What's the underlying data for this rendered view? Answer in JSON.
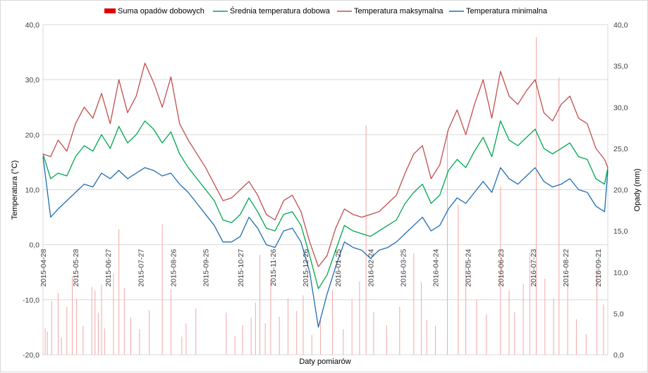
{
  "chart_data": {
    "type": "line",
    "title": "",
    "xlabel": "Daty pomiarów",
    "ylabel": "Temperatura (°C)",
    "y2label": "Opady (mm)",
    "ylim": [
      -20,
      40
    ],
    "y2lim": [
      0,
      40
    ],
    "yticks": [
      "-20,0",
      "-10,0",
      "0,0",
      "10,0",
      "20,0",
      "30,0",
      "40,0"
    ],
    "y2ticks": [
      "0,0",
      "5,0",
      "10,0",
      "15,0",
      "20,0",
      "25,0",
      "30,0",
      "35,0",
      "40,0"
    ],
    "x_start": "2015-04-28",
    "x_end": "2016-09-30",
    "x_ticks": [
      "2015-04-28",
      "2015-05-28",
      "2015-06-27",
      "2015-07-27",
      "2015-08-26",
      "2015-09-25",
      "2015-10-27",
      "2015-11-26",
      "2015-12-26",
      "2016-01-25",
      "2016-02-24",
      "2016-03-25",
      "2016-04-24",
      "2016-05-24",
      "2016-06-23",
      "2016-07-23",
      "2016-08-22",
      "2016-09-21"
    ],
    "legend_position": "top",
    "grid": "horizontal",
    "series": [
      {
        "name": "Suma opadów dobowych",
        "type": "bar",
        "axis": "right",
        "color": "#f4a6a6",
        "points": [
          [
            "2015-04-30",
            3.2
          ],
          [
            "2015-05-02",
            2.8
          ],
          [
            "2015-05-06",
            6.5
          ],
          [
            "2015-05-12",
            7.5
          ],
          [
            "2015-05-15",
            2.1
          ],
          [
            "2015-05-20",
            5.8
          ],
          [
            "2015-05-25",
            9.5
          ],
          [
            "2015-05-29",
            6.8
          ],
          [
            "2015-06-04",
            3.5
          ],
          [
            "2015-06-12",
            8.2
          ],
          [
            "2015-06-15",
            7.8
          ],
          [
            "2015-06-18",
            5.1
          ],
          [
            "2015-06-21",
            8.5
          ],
          [
            "2015-06-24",
            3.2
          ],
          [
            "2015-07-02",
            9.8
          ],
          [
            "2015-07-07",
            15.2
          ],
          [
            "2015-07-12",
            8.1
          ],
          [
            "2015-07-18",
            4.5
          ],
          [
            "2015-07-26",
            3.1
          ],
          [
            "2015-08-04",
            5.4
          ],
          [
            "2015-08-16",
            15.8
          ],
          [
            "2015-08-24",
            7.9
          ],
          [
            "2015-09-03",
            2.2
          ],
          [
            "2015-09-07",
            3.8
          ],
          [
            "2015-09-16",
            5.6
          ],
          [
            "2015-10-14",
            5.1
          ],
          [
            "2015-10-22",
            2.3
          ],
          [
            "2015-10-29",
            3.6
          ],
          [
            "2015-11-06",
            4.5
          ],
          [
            "2015-11-10",
            6.3
          ],
          [
            "2015-11-14",
            12.1
          ],
          [
            "2015-11-19",
            3.8
          ],
          [
            "2015-11-24",
            9.1
          ],
          [
            "2015-12-02",
            4.6
          ],
          [
            "2015-12-10",
            6.8
          ],
          [
            "2015-12-18",
            5.3
          ],
          [
            "2015-12-24",
            7.2
          ],
          [
            "2016-01-01",
            2.4
          ],
          [
            "2016-01-09",
            4.5
          ],
          [
            "2016-01-20",
            7.8
          ],
          [
            "2016-01-30",
            3.1
          ],
          [
            "2016-02-07",
            6.7
          ],
          [
            "2016-02-14",
            8.9
          ],
          [
            "2016-02-20",
            27.8
          ],
          [
            "2016-02-27",
            5.2
          ],
          [
            "2016-03-10",
            3.6
          ],
          [
            "2016-03-22",
            5.8
          ],
          [
            "2016-04-04",
            12.3
          ],
          [
            "2016-04-11",
            8.8
          ],
          [
            "2016-04-16",
            4.2
          ],
          [
            "2016-04-24",
            3.5
          ],
          [
            "2016-05-05",
            27.1
          ],
          [
            "2016-05-15",
            18.2
          ],
          [
            "2016-05-22",
            11.2
          ],
          [
            "2016-06-01",
            6.7
          ],
          [
            "2016-06-10",
            4.9
          ],
          [
            "2016-06-23",
            20.4
          ],
          [
            "2016-07-01",
            7.8
          ],
          [
            "2016-07-06",
            5.2
          ],
          [
            "2016-07-14",
            8.6
          ],
          [
            "2016-07-20",
            12.4
          ],
          [
            "2016-07-26",
            38.5
          ],
          [
            "2016-08-03",
            9.2
          ],
          [
            "2016-08-11",
            6.8
          ],
          [
            "2016-08-16",
            33.6
          ],
          [
            "2016-08-24",
            8.8
          ],
          [
            "2016-09-01",
            4.3
          ],
          [
            "2016-09-10",
            2.5
          ],
          [
            "2016-09-20",
            10.6
          ],
          [
            "2016-09-26",
            6.1
          ]
        ]
      },
      {
        "name": "Średnia temperatura dobowa",
        "type": "line",
        "axis": "left",
        "color": "#00a650",
        "points": [
          [
            "2015-04-28",
            16.5
          ],
          [
            "2015-05-05",
            12.0
          ],
          [
            "2015-05-12",
            13.0
          ],
          [
            "2015-05-20",
            12.5
          ],
          [
            "2015-05-28",
            16.0
          ],
          [
            "2015-06-05",
            18.0
          ],
          [
            "2015-06-13",
            17.0
          ],
          [
            "2015-06-21",
            20.0
          ],
          [
            "2015-06-29",
            17.5
          ],
          [
            "2015-07-07",
            21.5
          ],
          [
            "2015-07-15",
            18.5
          ],
          [
            "2015-07-23",
            20.0
          ],
          [
            "2015-07-31",
            22.5
          ],
          [
            "2015-08-08",
            21.0
          ],
          [
            "2015-08-16",
            18.5
          ],
          [
            "2015-08-24",
            20.5
          ],
          [
            "2015-09-01",
            16.5
          ],
          [
            "2015-09-09",
            14.0
          ],
          [
            "2015-09-17",
            12.0
          ],
          [
            "2015-09-25",
            10.0
          ],
          [
            "2015-10-03",
            8.0
          ],
          [
            "2015-10-11",
            4.5
          ],
          [
            "2015-10-19",
            4.0
          ],
          [
            "2015-10-27",
            5.5
          ],
          [
            "2015-11-04",
            8.5
          ],
          [
            "2015-11-12",
            6.0
          ],
          [
            "2015-11-20",
            3.0
          ],
          [
            "2015-11-28",
            2.5
          ],
          [
            "2015-12-06",
            5.5
          ],
          [
            "2015-12-14",
            6.0
          ],
          [
            "2015-12-22",
            3.5
          ],
          [
            "2015-12-30",
            -2.0
          ],
          [
            "2016-01-07",
            -8.0
          ],
          [
            "2016-01-15",
            -5.5
          ],
          [
            "2016-01-23",
            -1.0
          ],
          [
            "2016-01-31",
            3.5
          ],
          [
            "2016-02-08",
            2.5
          ],
          [
            "2016-02-16",
            2.0
          ],
          [
            "2016-02-24",
            1.5
          ],
          [
            "2016-03-03",
            2.5
          ],
          [
            "2016-03-11",
            3.5
          ],
          [
            "2016-03-19",
            4.5
          ],
          [
            "2016-03-27",
            7.5
          ],
          [
            "2016-04-04",
            9.5
          ],
          [
            "2016-04-12",
            11.0
          ],
          [
            "2016-04-20",
            7.5
          ],
          [
            "2016-04-28",
            9.0
          ],
          [
            "2016-05-06",
            13.5
          ],
          [
            "2016-05-14",
            15.5
          ],
          [
            "2016-05-22",
            14.0
          ],
          [
            "2016-05-30",
            17.0
          ],
          [
            "2016-06-07",
            19.5
          ],
          [
            "2016-06-15",
            16.0
          ],
          [
            "2016-06-23",
            22.5
          ],
          [
            "2016-07-01",
            19.0
          ],
          [
            "2016-07-09",
            18.0
          ],
          [
            "2016-07-17",
            19.5
          ],
          [
            "2016-07-25",
            21.0
          ],
          [
            "2016-08-02",
            17.5
          ],
          [
            "2016-08-10",
            16.5
          ],
          [
            "2016-08-18",
            17.5
          ],
          [
            "2016-08-26",
            18.5
          ],
          [
            "2016-09-03",
            16.0
          ],
          [
            "2016-09-11",
            15.5
          ],
          [
            "2016-09-19",
            12.0
          ],
          [
            "2016-09-27",
            11.0
          ],
          [
            "2016-09-30",
            14.0
          ]
        ]
      },
      {
        "name": "Temperatura maksymalna",
        "type": "line",
        "axis": "left",
        "color": "#c0504d",
        "points": [
          [
            "2015-04-28",
            16.5
          ],
          [
            "2015-05-05",
            16.0
          ],
          [
            "2015-05-12",
            19.0
          ],
          [
            "2015-05-20",
            17.0
          ],
          [
            "2015-05-28",
            22.0
          ],
          [
            "2015-06-05",
            25.0
          ],
          [
            "2015-06-13",
            23.0
          ],
          [
            "2015-06-21",
            27.5
          ],
          [
            "2015-06-29",
            22.0
          ],
          [
            "2015-07-07",
            30.0
          ],
          [
            "2015-07-15",
            24.0
          ],
          [
            "2015-07-23",
            27.0
          ],
          [
            "2015-07-31",
            33.0
          ],
          [
            "2015-08-08",
            29.5
          ],
          [
            "2015-08-16",
            25.0
          ],
          [
            "2015-08-24",
            30.5
          ],
          [
            "2015-09-01",
            22.0
          ],
          [
            "2015-09-09",
            19.0
          ],
          [
            "2015-09-17",
            16.5
          ],
          [
            "2015-09-25",
            14.0
          ],
          [
            "2015-10-03",
            11.0
          ],
          [
            "2015-10-11",
            8.0
          ],
          [
            "2015-10-19",
            8.5
          ],
          [
            "2015-10-27",
            10.0
          ],
          [
            "2015-11-04",
            11.5
          ],
          [
            "2015-11-12",
            9.0
          ],
          [
            "2015-11-20",
            5.5
          ],
          [
            "2015-11-28",
            4.5
          ],
          [
            "2015-12-06",
            8.0
          ],
          [
            "2015-12-14",
            9.0
          ],
          [
            "2015-12-22",
            6.0
          ],
          [
            "2015-12-30",
            0.5
          ],
          [
            "2016-01-07",
            -4.0
          ],
          [
            "2016-01-15",
            -2.0
          ],
          [
            "2016-01-23",
            3.0
          ],
          [
            "2016-01-31",
            6.5
          ],
          [
            "2016-02-08",
            5.5
          ],
          [
            "2016-02-16",
            5.0
          ],
          [
            "2016-02-24",
            5.5
          ],
          [
            "2016-03-03",
            6.0
          ],
          [
            "2016-03-11",
            7.5
          ],
          [
            "2016-03-19",
            9.0
          ],
          [
            "2016-03-27",
            13.0
          ],
          [
            "2016-04-04",
            16.5
          ],
          [
            "2016-04-12",
            18.0
          ],
          [
            "2016-04-20",
            12.0
          ],
          [
            "2016-04-28",
            14.5
          ],
          [
            "2016-05-06",
            21.0
          ],
          [
            "2016-05-14",
            24.5
          ],
          [
            "2016-05-22",
            20.0
          ],
          [
            "2016-05-30",
            25.5
          ],
          [
            "2016-06-07",
            30.0
          ],
          [
            "2016-06-15",
            23.0
          ],
          [
            "2016-06-23",
            31.5
          ],
          [
            "2016-07-01",
            27.0
          ],
          [
            "2016-07-09",
            25.5
          ],
          [
            "2016-07-17",
            28.0
          ],
          [
            "2016-07-25",
            30.0
          ],
          [
            "2016-08-02",
            24.0
          ],
          [
            "2016-08-10",
            22.5
          ],
          [
            "2016-08-18",
            25.5
          ],
          [
            "2016-08-26",
            27.0
          ],
          [
            "2016-09-03",
            23.0
          ],
          [
            "2016-09-11",
            22.0
          ],
          [
            "2016-09-19",
            17.5
          ],
          [
            "2016-09-27",
            15.5
          ],
          [
            "2016-09-30",
            14.0
          ]
        ]
      },
      {
        "name": "Temperatura minimalna",
        "type": "line",
        "axis": "left",
        "color": "#1f6db5",
        "points": [
          [
            "2015-04-28",
            16.0
          ],
          [
            "2015-05-05",
            5.0
          ],
          [
            "2015-05-12",
            6.5
          ],
          [
            "2015-05-20",
            8.0
          ],
          [
            "2015-05-28",
            9.5
          ],
          [
            "2015-06-05",
            11.0
          ],
          [
            "2015-06-13",
            10.5
          ],
          [
            "2015-06-21",
            13.0
          ],
          [
            "2015-06-29",
            12.0
          ],
          [
            "2015-07-07",
            13.5
          ],
          [
            "2015-07-15",
            12.0
          ],
          [
            "2015-07-23",
            13.0
          ],
          [
            "2015-07-31",
            14.0
          ],
          [
            "2015-08-08",
            13.5
          ],
          [
            "2015-08-16",
            12.5
          ],
          [
            "2015-08-24",
            13.0
          ],
          [
            "2015-09-01",
            11.0
          ],
          [
            "2015-09-09",
            9.5
          ],
          [
            "2015-09-17",
            7.5
          ],
          [
            "2015-09-25",
            5.5
          ],
          [
            "2015-10-03",
            3.5
          ],
          [
            "2015-10-11",
            0.5
          ],
          [
            "2015-10-19",
            0.5
          ],
          [
            "2015-10-27",
            1.5
          ],
          [
            "2015-11-04",
            5.0
          ],
          [
            "2015-11-12",
            3.0
          ],
          [
            "2015-11-20",
            0.0
          ],
          [
            "2015-11-28",
            -0.5
          ],
          [
            "2015-12-06",
            2.5
          ],
          [
            "2015-12-14",
            3.0
          ],
          [
            "2015-12-22",
            0.5
          ],
          [
            "2015-12-30",
            -5.0
          ],
          [
            "2016-01-07",
            -15.0
          ],
          [
            "2016-01-15",
            -9.0
          ],
          [
            "2016-01-23",
            -4.0
          ],
          [
            "2016-01-31",
            0.5
          ],
          [
            "2016-02-08",
            -0.5
          ],
          [
            "2016-02-16",
            -1.0
          ],
          [
            "2016-02-24",
            -2.5
          ],
          [
            "2016-03-03",
            -1.0
          ],
          [
            "2016-03-11",
            -0.5
          ],
          [
            "2016-03-19",
            0.5
          ],
          [
            "2016-03-27",
            2.0
          ],
          [
            "2016-04-04",
            3.5
          ],
          [
            "2016-04-12",
            5.0
          ],
          [
            "2016-04-20",
            2.5
          ],
          [
            "2016-04-28",
            3.5
          ],
          [
            "2016-05-06",
            6.5
          ],
          [
            "2016-05-14",
            8.5
          ],
          [
            "2016-05-22",
            7.5
          ],
          [
            "2016-05-30",
            9.5
          ],
          [
            "2016-06-07",
            11.5
          ],
          [
            "2016-06-15",
            9.5
          ],
          [
            "2016-06-23",
            14.0
          ],
          [
            "2016-07-01",
            12.0
          ],
          [
            "2016-07-09",
            11.0
          ],
          [
            "2016-07-17",
            12.5
          ],
          [
            "2016-07-25",
            14.0
          ],
          [
            "2016-08-02",
            11.5
          ],
          [
            "2016-08-10",
            10.5
          ],
          [
            "2016-08-18",
            11.0
          ],
          [
            "2016-08-26",
            12.0
          ],
          [
            "2016-09-03",
            10.0
          ],
          [
            "2016-09-11",
            9.5
          ],
          [
            "2016-09-19",
            7.0
          ],
          [
            "2016-09-27",
            6.0
          ],
          [
            "2016-09-30",
            13.5
          ]
        ]
      }
    ]
  }
}
